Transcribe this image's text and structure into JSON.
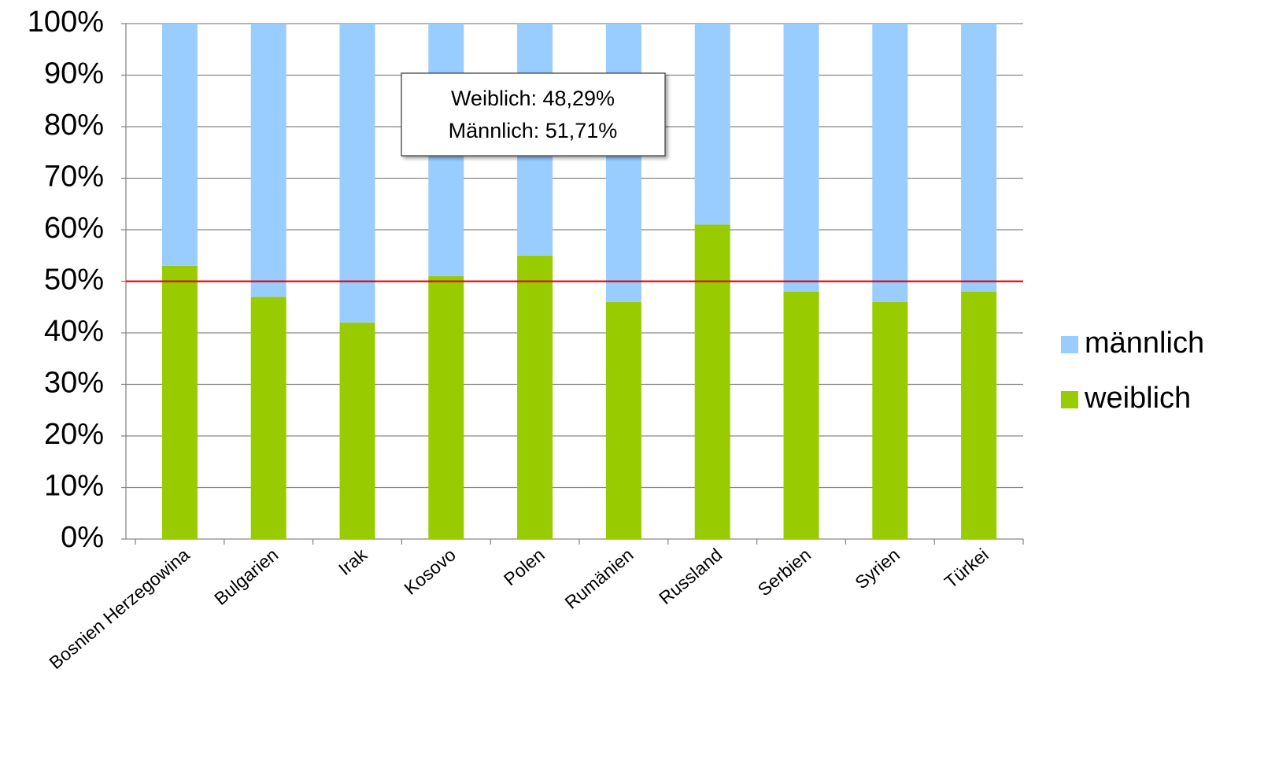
{
  "chart_data": {
    "type": "stacked_bar",
    "categories": [
      "Bosnien Herzegowina",
      "Bulgarien",
      "Irak",
      "Kosovo",
      "Polen",
      "Rumänien",
      "Russland",
      "Serbien",
      "Syrien",
      "Türkei"
    ],
    "series": [
      {
        "name": "weiblich",
        "color": "#99cc00",
        "values": [
          53,
          47,
          42,
          51,
          55,
          46,
          61,
          48,
          46,
          48
        ]
      },
      {
        "name": "männlich",
        "color": "#99ccff",
        "values": [
          47,
          53,
          58,
          49,
          45,
          54,
          39,
          52,
          54,
          52
        ]
      }
    ],
    "ylim": [
      0,
      100
    ],
    "yticks": [
      {
        "value": 0,
        "label": "0%"
      },
      {
        "value": 10,
        "label": "10%"
      },
      {
        "value": 20,
        "label": "20%"
      },
      {
        "value": 30,
        "label": "30%"
      },
      {
        "value": 40,
        "label": "40%"
      },
      {
        "value": 50,
        "label": "50%"
      },
      {
        "value": 60,
        "label": "60%"
      },
      {
        "value": 70,
        "label": "70%"
      },
      {
        "value": 80,
        "label": "80%"
      },
      {
        "value": 90,
        "label": "90%"
      },
      {
        "value": 100,
        "label": "100%"
      }
    ],
    "grid": true,
    "legend": "right",
    "reference_line": {
      "value": 50,
      "color": "#e00000"
    },
    "annotations": [
      "Weiblich: 48,29%",
      "Männlich: 51,71%"
    ]
  }
}
